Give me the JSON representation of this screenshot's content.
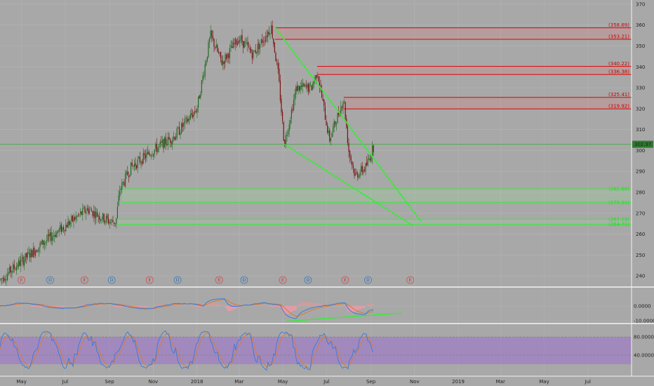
{
  "chart_data": {
    "type": "candlestick",
    "price_axis": {
      "min": 235,
      "max": 372,
      "ticks": [
        240,
        250,
        260,
        270,
        280,
        290,
        300,
        310,
        320,
        330,
        340,
        350,
        360,
        370
      ]
    },
    "time_axis": {
      "start": "2017-04-01",
      "end": "2019-08-31",
      "labels": [
        {
          "date": "2017-05-01",
          "text": "May"
        },
        {
          "date": "2017-07-01",
          "text": "Jul"
        },
        {
          "date": "2017-09-01",
          "text": "Sep"
        },
        {
          "date": "2017-11-01",
          "text": "Nov"
        },
        {
          "date": "2018-01-01",
          "text": "2018"
        },
        {
          "date": "2018-03-01",
          "text": "Mar"
        },
        {
          "date": "2018-05-01",
          "text": "May"
        },
        {
          "date": "2018-07-01",
          "text": "Jul"
        },
        {
          "date": "2018-09-01",
          "text": "Sep"
        },
        {
          "date": "2018-11-01",
          "text": "Nov"
        },
        {
          "date": "2019-01-01",
          "text": "2019"
        },
        {
          "date": "2019-03-01",
          "text": "Mar"
        },
        {
          "date": "2019-05-01",
          "text": "May"
        },
        {
          "date": "2019-07-01",
          "text": "Jul"
        }
      ]
    },
    "price_path": [
      [
        "2017-04-01",
        238
      ],
      [
        "2017-05-01",
        247
      ],
      [
        "2017-06-01",
        256
      ],
      [
        "2017-07-01",
        264
      ],
      [
        "2017-08-01",
        272
      ],
      [
        "2017-09-01",
        266
      ],
      [
        "2017-09-10",
        266
      ],
      [
        "2017-09-15",
        281
      ],
      [
        "2017-10-01",
        292
      ],
      [
        "2017-11-01",
        300
      ],
      [
        "2017-12-01",
        307
      ],
      [
        "2018-01-01",
        320
      ],
      [
        "2018-01-20",
        355
      ],
      [
        "2018-02-05",
        342
      ],
      [
        "2018-03-01",
        354
      ],
      [
        "2018-03-20",
        346
      ],
      [
        "2018-04-15",
        359
      ],
      [
        "2018-04-25",
        335
      ],
      [
        "2018-05-03",
        303
      ],
      [
        "2018-05-20",
        330
      ],
      [
        "2018-06-10",
        330
      ],
      [
        "2018-06-18",
        338
      ],
      [
        "2018-07-05",
        305
      ],
      [
        "2018-07-25",
        325
      ],
      [
        "2018-08-01",
        300
      ],
      [
        "2018-08-10",
        288
      ],
      [
        "2018-08-25",
        292
      ],
      [
        "2018-09-06",
        303
      ]
    ],
    "last_price": {
      "label": "302.97",
      "value": 302.97
    },
    "resistance_levels": [
      {
        "label": "(358.69)",
        "value": 358.69
      },
      {
        "label": "(353.21)",
        "value": 353.21
      },
      {
        "label": "(340.22)",
        "value": 340.22
      },
      {
        "label": "(336.38)",
        "value": 336.38
      },
      {
        "label": "(325.41)",
        "value": 325.41
      },
      {
        "label": "(319.92)",
        "value": 319.92
      }
    ],
    "support_levels": [
      {
        "label": "(281.60)",
        "value": 281.6
      },
      {
        "label": "(275.21)",
        "value": 275.21
      },
      {
        "label": "(267.13)",
        "value": 267.13
      },
      {
        "label": "(264.71)",
        "value": 264.71
      }
    ],
    "trendlines": [
      {
        "from": [
          "2018-04-20",
          359
        ],
        "to": [
          "2018-11-10",
          266
        ]
      },
      {
        "from": [
          "2018-05-03",
          303
        ],
        "to": [
          "2018-10-30",
          264
        ]
      }
    ],
    "events": [
      {
        "date": "2017-05-01",
        "type": "E"
      },
      {
        "date": "2017-06-10",
        "type": "D"
      },
      {
        "date": "2017-07-28",
        "type": "E"
      },
      {
        "date": "2017-09-04",
        "type": "D"
      },
      {
        "date": "2017-10-27",
        "type": "E"
      },
      {
        "date": "2017-12-05",
        "type": "D"
      },
      {
        "date": "2018-02-01",
        "type": "E"
      },
      {
        "date": "2018-03-08",
        "type": "D"
      },
      {
        "date": "2018-05-01",
        "type": "E"
      },
      {
        "date": "2018-06-05",
        "type": "D"
      },
      {
        "date": "2018-07-27",
        "type": "E"
      },
      {
        "date": "2018-08-28",
        "type": "D"
      },
      {
        "date": "2018-10-26",
        "type": "E"
      }
    ],
    "macd_panel": {
      "ticks": [
        {
          "value": 0,
          "label": "0.0000"
        },
        {
          "value": -10,
          "label": "-10.0000"
        }
      ]
    },
    "stoch_panel": {
      "ticks": [
        {
          "value": 80,
          "label": "80.0000"
        },
        {
          "value": 40,
          "label": "40.0000"
        }
      ]
    }
  }
}
